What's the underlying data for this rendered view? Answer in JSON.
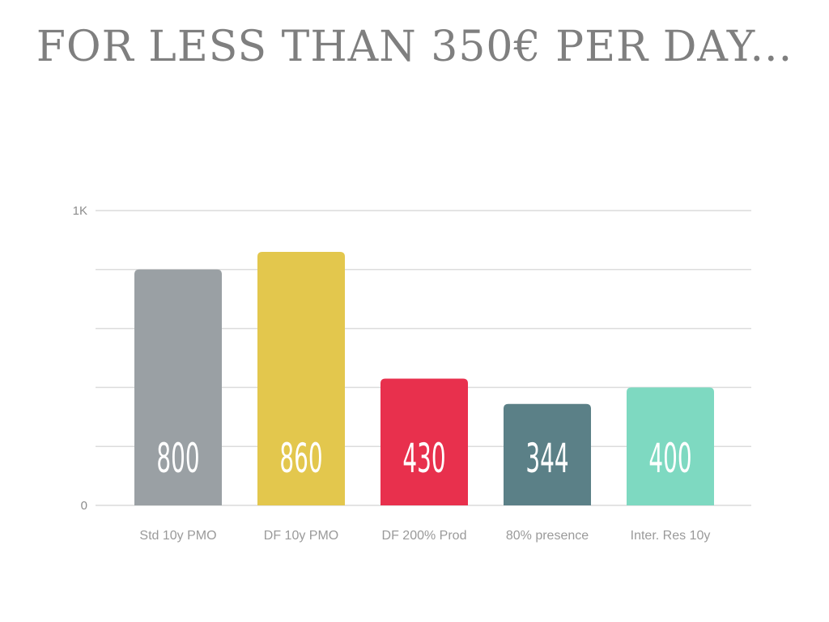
{
  "title": "FOR LESS THAN 350€ PER DAY...",
  "chart_data": {
    "type": "bar",
    "title": "FOR LESS THAN 350€ PER DAY...",
    "xlabel": "",
    "ylabel": "",
    "categories": [
      "Std 10y PMO",
      "DF 10y PMO",
      "DF 200% Prod",
      "80% presence",
      "Inter. Res 10y"
    ],
    "values": [
      800,
      860,
      430,
      344,
      400
    ],
    "data_labels": [
      "800",
      "860",
      "430",
      "344",
      "400"
    ],
    "colors": [
      "#9aa0a4",
      "#e3c74d",
      "#e8304d",
      "#5b8087",
      "#7ed9c1"
    ],
    "ylim": [
      0,
      1000
    ],
    "yticks": [
      0,
      200,
      400,
      600,
      800,
      1000
    ],
    "ytick_labels": [
      "0",
      "",
      "",
      "",
      "",
      "1K"
    ],
    "grid": true,
    "legend": "none"
  }
}
